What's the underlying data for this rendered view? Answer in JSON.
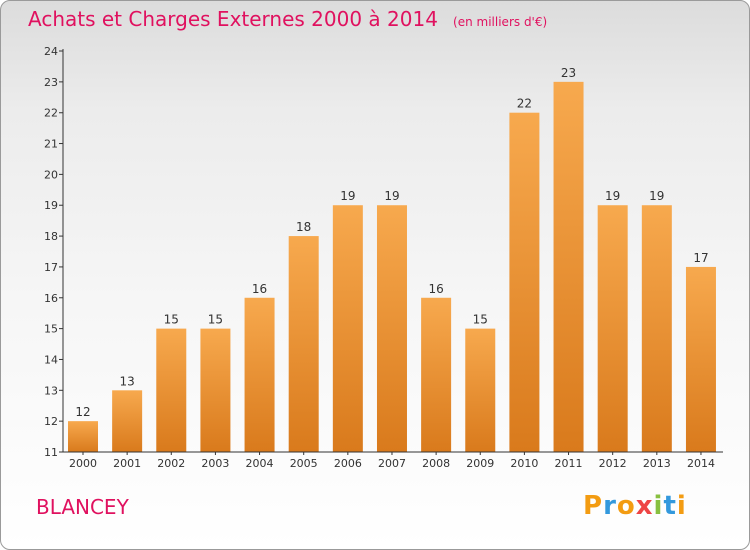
{
  "header": {
    "title": "Achats et Charges Externes 2000 à 2014",
    "subtitle": "(en milliers d'€)"
  },
  "footer": {
    "commune": "BLANCEY",
    "logo_letters": [
      "P",
      "r",
      "o",
      "x",
      "i",
      "t",
      "i"
    ]
  },
  "colors": {
    "title": "#e0115f",
    "bar_light": "#f7a94e",
    "bar_dark": "#d97a1c",
    "axis": "#333333"
  },
  "chart_data": {
    "type": "bar",
    "title": "Achats et Charges Externes 2000 à 2014",
    "subtitle": "(en milliers d'€)",
    "categories": [
      "2000",
      "2001",
      "2002",
      "2003",
      "2004",
      "2005",
      "2006",
      "2007",
      "2008",
      "2009",
      "2010",
      "2011",
      "2012",
      "2013",
      "2014"
    ],
    "values": [
      12,
      13,
      15,
      15,
      16,
      18,
      19,
      19,
      16,
      15,
      22,
      23,
      19,
      19,
      17
    ],
    "ylim": [
      11,
      24
    ],
    "yticks": [
      11,
      12,
      13,
      14,
      15,
      16,
      17,
      18,
      19,
      20,
      21,
      22,
      23,
      24
    ],
    "grid": false,
    "data_labels": true
  }
}
